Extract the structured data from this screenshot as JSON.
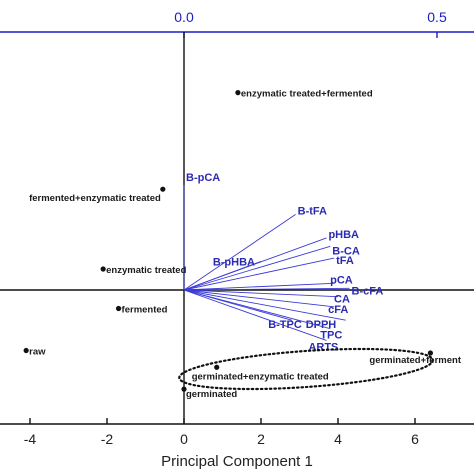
{
  "chart_data": {
    "type": "scatter",
    "title": "",
    "xlabel": "Principal Component 1",
    "bottom_axis": {
      "ticks": [
        -4,
        -2,
        0,
        2,
        4,
        6
      ],
      "range": [
        -4.6,
        7.4
      ]
    },
    "top_axis": {
      "ticks": [
        0.0,
        0.5
      ],
      "labels": [
        "0.0",
        "0.5"
      ],
      "color": "#1c1cc8"
    },
    "scores": [
      {
        "label": "enzymatic treated+fermented",
        "x": 1.4,
        "y": 2.35
      },
      {
        "label": "fermented+enzymatic treated",
        "x": -0.55,
        "y": 1.2
      },
      {
        "label": "enzymatic treated",
        "x": -2.1,
        "y": 0.25
      },
      {
        "label": "fermented",
        "x": -1.7,
        "y": -0.22
      },
      {
        "label": "raw",
        "x": -4.1,
        "y": -0.72
      },
      {
        "label": "germinated+enzymatic treated",
        "x": 0.85,
        "y": -0.92
      },
      {
        "label": "germinated",
        "x": 0.0,
        "y": -1.18
      },
      {
        "label": "germinated+ferment",
        "x": 6.4,
        "y": -0.75
      }
    ],
    "loadings": [
      {
        "label": "B-pCA",
        "x": 0.0,
        "y": 1.25
      },
      {
        "label": "B-tFA",
        "x": 2.9,
        "y": 0.9
      },
      {
        "label": "pHBA",
        "x": 3.7,
        "y": 0.62
      },
      {
        "label": "B-CA",
        "x": 3.8,
        "y": 0.52
      },
      {
        "label": "B-pHBA",
        "x": 2.0,
        "y": 0.34
      },
      {
        "label": "tFA",
        "x": 3.9,
        "y": 0.38
      },
      {
        "label": "pCA",
        "x": 3.9,
        "y": 0.08
      },
      {
        "label": "B-cFA",
        "x": 4.3,
        "y": 0.02
      },
      {
        "label": "CA",
        "x": 4.0,
        "y": -0.08
      },
      {
        "label": "cFA",
        "x": 3.9,
        "y": -0.2
      },
      {
        "label": "B-TPC",
        "x": 2.8,
        "y": -0.36
      },
      {
        "label": "DPPH",
        "x": 4.2,
        "y": -0.36
      },
      {
        "label": "TPC",
        "x": 3.8,
        "y": -0.46
      },
      {
        "label": "ARTS",
        "x": 3.7,
        "y": -0.6
      }
    ],
    "colors": {
      "score": "#111111",
      "loading": "#3b3bd6",
      "axis": "#111111",
      "top_axis": "#1c1cc8"
    }
  }
}
